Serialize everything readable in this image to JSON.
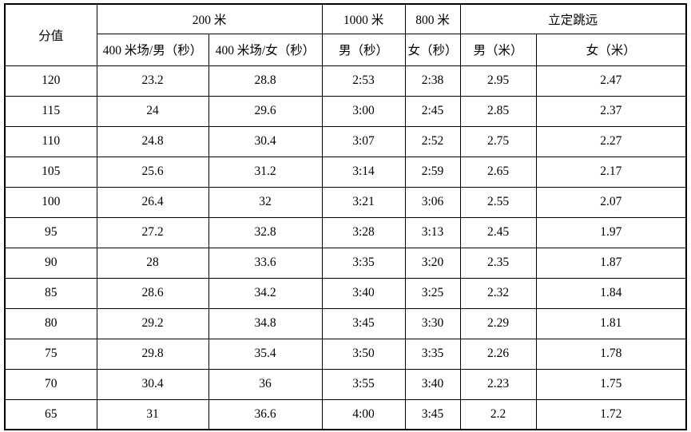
{
  "table": {
    "header": {
      "score": "分值",
      "group_200m": "200 米",
      "group_1000m": "1000 米",
      "group_800m": "800 米",
      "group_long_jump": "立定跳远",
      "sub_200m_male": "400 米场/男（秒）",
      "sub_200m_female": "400 米场/女（秒）",
      "sub_1000m_male": "男（秒）",
      "sub_800m_female": "女（秒）",
      "sub_long_jump_male": "男（米）",
      "sub_long_jump_female": "女（米）"
    },
    "rows": [
      [
        "120",
        "23.2",
        "28.8",
        "2:53",
        "2:38",
        "2.95",
        "2.47"
      ],
      [
        "115",
        "24",
        "29.6",
        "3:00",
        "2:45",
        "2.85",
        "2.37"
      ],
      [
        "110",
        "24.8",
        "30.4",
        "3:07",
        "2:52",
        "2.75",
        "2.27"
      ],
      [
        "105",
        "25.6",
        "31.2",
        "3:14",
        "2:59",
        "2.65",
        "2.17"
      ],
      [
        "100",
        "26.4",
        "32",
        "3:21",
        "3:06",
        "2.55",
        "2.07"
      ],
      [
        "95",
        "27.2",
        "32.8",
        "3:28",
        "3:13",
        "2.45",
        "1.97"
      ],
      [
        "90",
        "28",
        "33.6",
        "3:35",
        "3:20",
        "2.35",
        "1.87"
      ],
      [
        "85",
        "28.6",
        "34.2",
        "3:40",
        "3:25",
        "2.32",
        "1.84"
      ],
      [
        "80",
        "29.2",
        "34.8",
        "3:45",
        "3:30",
        "2.29",
        "1.81"
      ],
      [
        "75",
        "29.8",
        "35.4",
        "3:50",
        "3:35",
        "2.26",
        "1.78"
      ],
      [
        "70",
        "30.4",
        "36",
        "3:55",
        "3:40",
        "2.23",
        "1.75"
      ],
      [
        "65",
        "31",
        "36.6",
        "4:00",
        "3:45",
        "2.2",
        "1.72"
      ]
    ]
  },
  "colors": {
    "border": "#000000",
    "text": "#000000",
    "background": "#ffffff"
  }
}
